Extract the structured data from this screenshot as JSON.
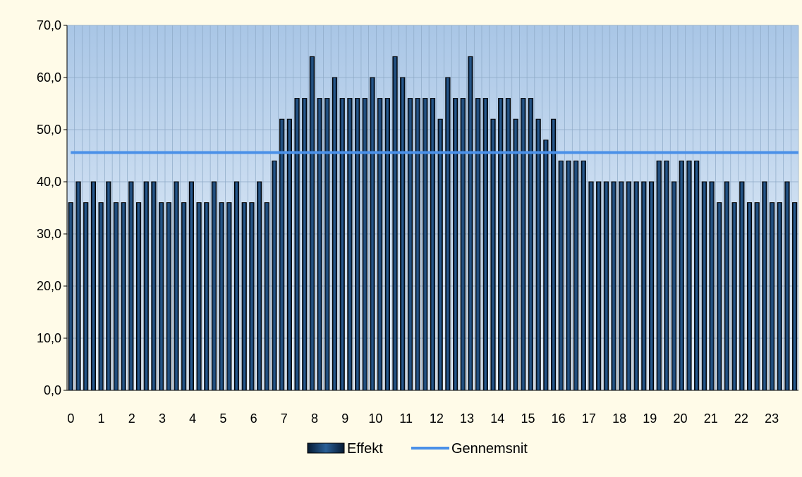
{
  "chart_data": {
    "type": "bar",
    "ylim": [
      0,
      70
    ],
    "y_ticks": [
      "0,0",
      "10,0",
      "20,0",
      "30,0",
      "40,0",
      "50,0",
      "60,0",
      "70,0"
    ],
    "x_tick_labels": [
      "0",
      "1",
      "2",
      "3",
      "4",
      "5",
      "6",
      "7",
      "8",
      "9",
      "10",
      "11",
      "12",
      "13",
      "14",
      "15",
      "16",
      "17",
      "18",
      "19",
      "20",
      "21",
      "22",
      "23"
    ],
    "grid": true,
    "legend_position": "bottom",
    "series": [
      {
        "name": "Effekt",
        "type": "bar",
        "color": "#0d2a4a",
        "values": [
          36,
          40,
          36,
          40,
          36,
          40,
          36,
          36,
          40,
          36,
          40,
          40,
          36,
          36,
          40,
          36,
          40,
          36,
          36,
          40,
          36,
          36,
          40,
          36,
          36,
          40,
          36,
          44,
          52,
          52,
          56,
          56,
          64,
          56,
          56,
          60,
          56,
          56,
          56,
          56,
          60,
          56,
          56,
          64,
          60,
          56,
          56,
          56,
          56,
          52,
          60,
          56,
          56,
          64,
          56,
          56,
          52,
          56,
          56,
          52,
          56,
          56,
          52,
          48,
          52,
          44,
          44,
          44,
          44,
          40,
          40,
          40,
          40,
          40,
          40,
          40,
          40,
          40,
          44,
          44,
          40,
          44,
          44,
          44,
          40,
          40,
          36,
          40,
          36,
          40,
          36,
          36,
          40,
          36,
          36,
          40,
          36
        ]
      },
      {
        "name": "Gennemsnit",
        "type": "line",
        "color": "#4a90e8",
        "value": 45.6
      }
    ]
  }
}
